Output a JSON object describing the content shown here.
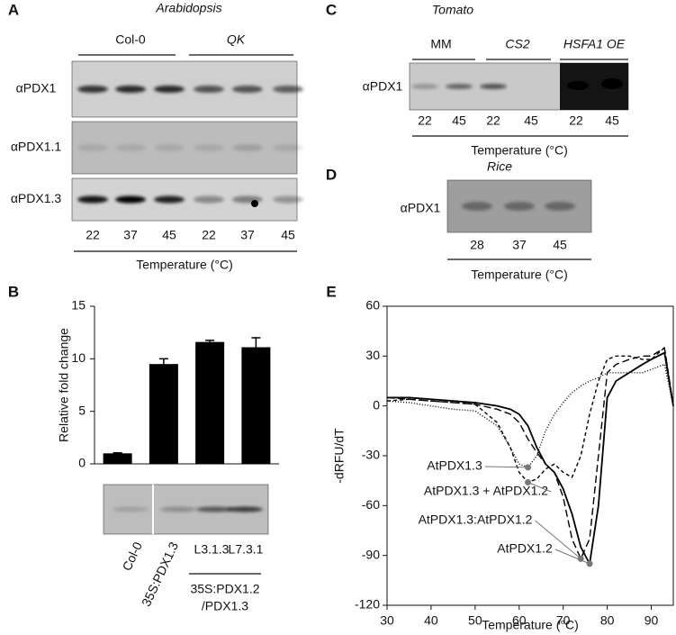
{
  "panels": {
    "A": {
      "letter": "A",
      "title": "Arabidopsis",
      "groups": [
        "Col-0",
        "QK"
      ],
      "rows": [
        "αPDX1",
        "αPDX1.1",
        "αPDX1.3"
      ],
      "lanes": [
        22,
        37,
        45,
        22,
        37,
        45
      ],
      "axis_label": "Temperature (°C)"
    },
    "C": {
      "letter": "C",
      "title": "Tomato",
      "groups": [
        "MM",
        "CS2",
        "HSFA1 OE"
      ],
      "rows": [
        "αPDX1"
      ],
      "lanes": [
        22,
        45,
        22,
        45,
        22,
        45
      ],
      "axis_label": "Temperature (°C)"
    },
    "D": {
      "letter": "D",
      "title": "Rice",
      "rows": [
        "αPDX1"
      ],
      "lanes": [
        28,
        37,
        45
      ],
      "axis_label": "Temperature (°C)"
    },
    "B": {
      "letter": "B",
      "blot_group": [
        "35S:PDX1.2",
        "/PDX1.3"
      ]
    },
    "E": {
      "letter": "E"
    }
  },
  "chart_data": [
    {
      "type": "bar",
      "ylabel": "Relative fold change",
      "categories": [
        "Col-0",
        "35S:PDX1.3",
        "L3.1.3",
        "L7.3.1"
      ],
      "values": [
        1.0,
        9.5,
        11.6,
        11.1
      ],
      "errors": [
        0.05,
        0.5,
        0.15,
        0.9
      ],
      "color": "#000000",
      "ylim": [
        0,
        15
      ],
      "yticks": [
        0,
        5,
        10,
        15
      ]
    },
    {
      "type": "line",
      "xlabel": "Temperature (°C)",
      "ylabel": "-dRFU/dT",
      "x": [
        30,
        35,
        40,
        45,
        50,
        55,
        58,
        60,
        62,
        64,
        66,
        68,
        70,
        72,
        74,
        76,
        78,
        80,
        82,
        85,
        88,
        90,
        93,
        95
      ],
      "series": [
        {
          "name": "AtPDX1.2",
          "color": "#000000",
          "dash": "none",
          "values": [
            5,
            5,
            4,
            3,
            2,
            0,
            -2,
            -5,
            -12,
            -25,
            -35,
            -40,
            -50,
            -65,
            -85,
            -95,
            -60,
            5,
            15,
            20,
            25,
            28,
            32,
            0
          ]
        },
        {
          "name": "AtPDX1.3:AtPDX1.2",
          "color": "#000000",
          "dash": "8,4",
          "values": [
            5,
            4,
            3,
            2,
            1,
            -2,
            -5,
            -10,
            -20,
            -28,
            -35,
            -40,
            -55,
            -80,
            -92,
            -80,
            -30,
            20,
            25,
            28,
            30,
            30,
            35,
            0
          ]
        },
        {
          "name": "AtPDX1.3 + AtPDX1.2",
          "color": "#000000",
          "dash": "4,3",
          "values": [
            3,
            4,
            3,
            2,
            1,
            -10,
            -25,
            -40,
            -46,
            -44,
            -38,
            -35,
            -40,
            -43,
            -30,
            -5,
            15,
            28,
            30,
            30,
            28,
            28,
            35,
            0
          ]
        },
        {
          "name": "AtPDX1.3",
          "color": "#000000",
          "dash": "1,2",
          "values": [
            3,
            2,
            0,
            -2,
            -3,
            -12,
            -25,
            -35,
            -37,
            -30,
            -15,
            -5,
            2,
            8,
            12,
            15,
            17,
            20,
            20,
            20,
            20,
            22,
            25,
            0
          ]
        }
      ],
      "xlim": [
        30,
        95
      ],
      "xticks": [
        30,
        40,
        50,
        60,
        70,
        80,
        90
      ],
      "ylim": [
        -120,
        60
      ],
      "yticks": [
        -120,
        -90,
        -60,
        -30,
        0,
        30,
        60
      ]
    }
  ]
}
